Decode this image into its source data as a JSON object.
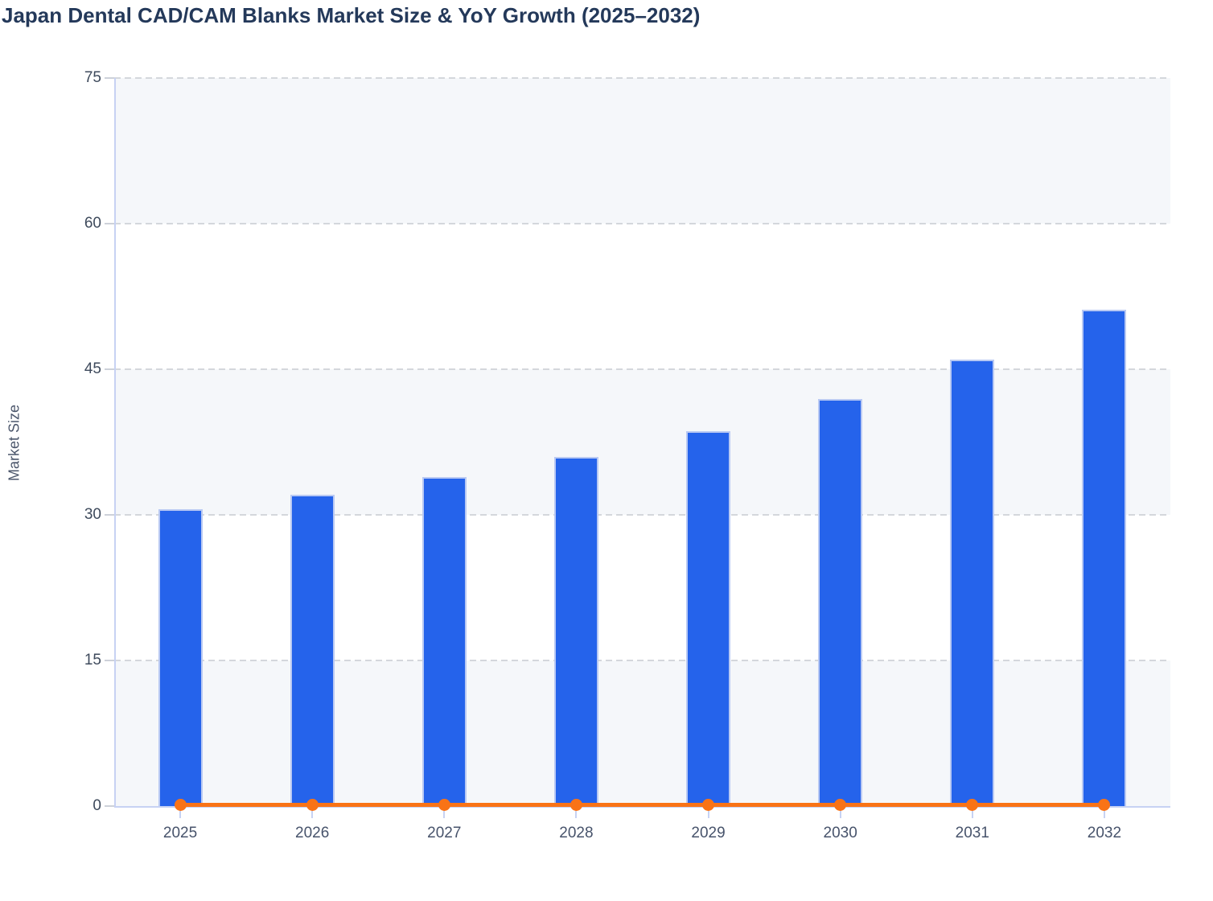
{
  "header": {
    "title": "Japan Dental CAD/CAM Blanks Market Size & YoY Growth (2025–2032)"
  },
  "axes": {
    "y_label": "Market Size",
    "y_ticks": [
      0,
      15,
      30,
      45,
      60,
      75
    ],
    "x_ticks": [
      "2025",
      "2026",
      "2027",
      "2028",
      "2029",
      "2030",
      "2031",
      "2032"
    ]
  },
  "colors": {
    "bar": "#2563eb",
    "bar_border": "#b9c9f3",
    "growth_line": "#f97316",
    "title_text": "#24395a",
    "axis_line": "#c7d2f3",
    "grid_dash": "#d4d7dc",
    "band_fill": "#f5f7fa",
    "band_white": "#ffffff",
    "tick_label": "#3e4a5c"
  },
  "chart_data": {
    "type": "bar",
    "title": "Japan Dental CAD/CAM Blanks Market Size & YoY Growth (2025–2032)",
    "xlabel": "",
    "ylabel": "Market Size",
    "categories": [
      "2025",
      "2026",
      "2027",
      "2028",
      "2029",
      "2030",
      "2031",
      "2032"
    ],
    "series": [
      {
        "name": "Market Size",
        "type": "bar",
        "values": [
          30.6,
          32.1,
          33.9,
          36.0,
          38.6,
          41.9,
          46.0,
          51.1
        ]
      },
      {
        "name": "YoY Growth",
        "type": "line",
        "values_as_plotted": [
          0,
          0,
          0,
          0,
          0,
          0,
          0,
          0
        ],
        "note": "orange marker line rendered flat at ~0 on the left axis"
      }
    ],
    "ylim": [
      0,
      75
    ],
    "yticks": [
      0,
      15,
      30,
      45,
      60,
      75
    ],
    "grid": "horizontal dashed lines at each y tick; alternating shaded bands (0-15, 30-45, 60-75 shaded)",
    "legend_position": "none"
  }
}
